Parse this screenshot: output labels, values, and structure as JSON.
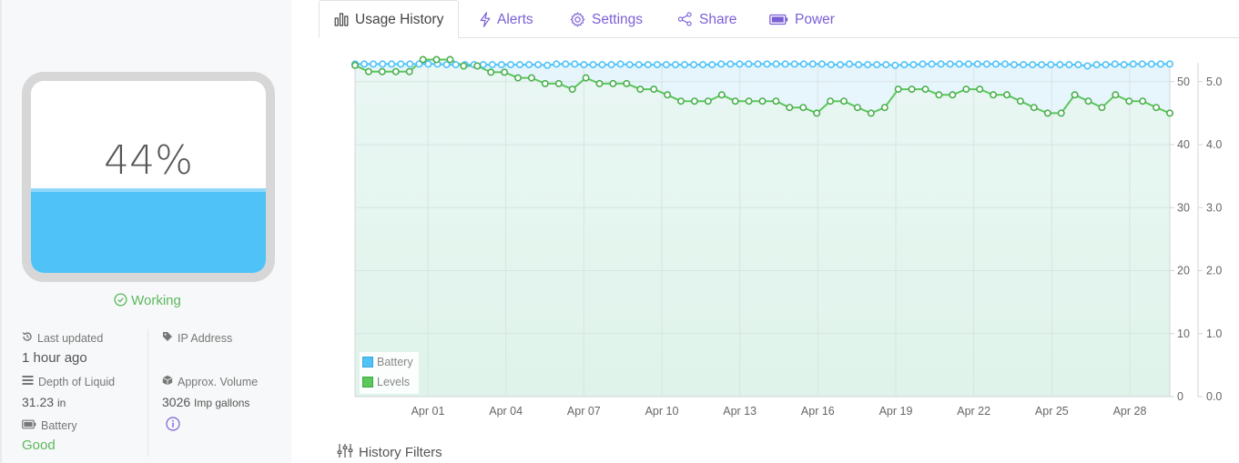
{
  "tank": {
    "percent_text": "44%",
    "fill_fraction": 0.44,
    "status": "Working"
  },
  "info": {
    "last_updated_label": "Last updated",
    "last_updated_value": "1 hour ago",
    "ip_label": "IP Address",
    "depth_label": "Depth of Liquid",
    "depth_value": "31.23",
    "depth_unit": "in",
    "volume_label": "Approx. Volume",
    "volume_value": "3026",
    "volume_unit": "Imp gallons",
    "battery_label": "Battery",
    "battery_value": "Good"
  },
  "tabs": [
    {
      "label": "Usage History",
      "icon": "bar-chart-icon",
      "active": true
    },
    {
      "label": "Alerts",
      "icon": "lightning-icon",
      "active": false
    },
    {
      "label": "Settings",
      "icon": "gear-icon",
      "active": false
    },
    {
      "label": "Share",
      "icon": "share-icon",
      "active": false
    },
    {
      "label": "Power",
      "icon": "battery-icon",
      "active": false
    }
  ],
  "colors": {
    "accent": "#7b5fd6",
    "battery": "#4fc3f7",
    "levels": "#5cc75c",
    "good": "#5cb85c"
  },
  "filters_label": "History Filters",
  "chart_data": {
    "type": "line",
    "x_tick_labels": [
      "Apr 01",
      "Apr 04",
      "Apr 07",
      "Apr 10",
      "Apr 13",
      "Apr 16",
      "Apr 19",
      "Apr 22",
      "Apr 25",
      "Apr 28"
    ],
    "y_left": {
      "ticks": [
        "0",
        "10",
        "20",
        "30",
        "40",
        "50"
      ],
      "range": [
        0,
        53
      ]
    },
    "y_right": {
      "ticks": [
        "0.0",
        "1.0",
        "2.0",
        "3.0",
        "4.0",
        "5.0"
      ],
      "range": [
        0,
        5.3
      ]
    },
    "grid": true,
    "legend_position": "bottom-left",
    "series": [
      {
        "name": "Battery",
        "axis": "right",
        "values": [
          5.28,
          5.28,
          5.28,
          5.28,
          5.28,
          5.28,
          5.28,
          5.28,
          5.28,
          5.28,
          5.27,
          5.27,
          5.27,
          5.27,
          5.27,
          5.27,
          5.27,
          5.27,
          5.27,
          5.27,
          5.27,
          5.26,
          5.28,
          5.28,
          5.28,
          5.27,
          5.27,
          5.27,
          5.27,
          5.28,
          5.27,
          5.27,
          5.27,
          5.27,
          5.27,
          5.27,
          5.27,
          5.27,
          5.27,
          5.27,
          5.28,
          5.28,
          5.28,
          5.28,
          5.28,
          5.28,
          5.28,
          5.28,
          5.28,
          5.28,
          5.28,
          5.28,
          5.27,
          5.27,
          5.28,
          5.27,
          5.27,
          5.27,
          5.27,
          5.26,
          5.27,
          5.27,
          5.28,
          5.28,
          5.28,
          5.28,
          5.28,
          5.28,
          5.28,
          5.28,
          5.28,
          5.28,
          5.27,
          5.27,
          5.27,
          5.27,
          5.27,
          5.27,
          5.27,
          5.27,
          5.25,
          5.27,
          5.27,
          5.28,
          5.27,
          5.28,
          5.28,
          5.28,
          5.28,
          5.28
        ]
      },
      {
        "name": "Levels",
        "axis": "left",
        "values": [
          52.6,
          51.6,
          51.6,
          51.6,
          51.6,
          53.5,
          53.5,
          53.5,
          52.5,
          52.5,
          51.5,
          51.5,
          50.6,
          50.6,
          49.7,
          49.7,
          48.8,
          50.6,
          49.7,
          49.7,
          49.7,
          48.8,
          48.8,
          47.9,
          46.9,
          46.9,
          46.9,
          47.9,
          46.9,
          46.9,
          46.9,
          46.9,
          45.9,
          45.9,
          45.0,
          46.9,
          46.9,
          45.9,
          45.0,
          45.9,
          48.8,
          48.8,
          48.8,
          47.9,
          47.9,
          48.8,
          48.8,
          47.9,
          47.9,
          46.9,
          45.9,
          45.0,
          45.0,
          47.9,
          46.9,
          45.9,
          47.9,
          46.9,
          46.9,
          45.9,
          45.0
        ]
      }
    ]
  }
}
